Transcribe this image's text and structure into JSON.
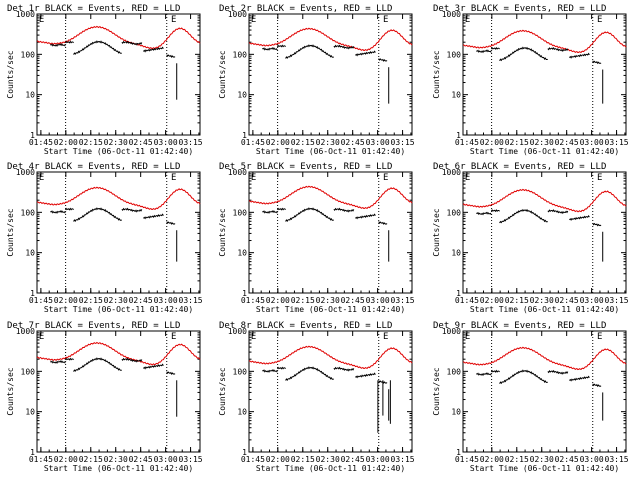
{
  "figure": {
    "layout": "3x3 grid",
    "legend_note": "BLACK = Events, RED = LLD",
    "start_time": "06-Oct-11 01:42:40"
  },
  "colors": {
    "events": "#000000",
    "lld": "#e00000",
    "axes": "#000000",
    "background": "#ffffff"
  },
  "chart_data": [
    {
      "type": "line",
      "title": "Det 1r BLACK = Events, RED = LLD",
      "xlabel": "Start Time (06-Oct-11 01:42:40)",
      "ylabel": "Counts/sec",
      "yscale": "log",
      "ylim": [
        1,
        1000
      ],
      "xlim_minutes": [
        0,
        98
      ],
      "x_tick_labels": [
        "01:45",
        "02:00",
        "02:15",
        "02:30",
        "02:45",
        "03:00",
        "03:15"
      ],
      "x_tick_minutes": [
        2.33,
        17.33,
        32.33,
        47.33,
        62.33,
        77.33,
        92.33
      ],
      "y_tick_labels": [
        "1",
        "10",
        "100",
        "1000"
      ],
      "y_ticks": [
        1,
        10,
        100,
        1000
      ],
      "event_markers": [
        "E",
        "E"
      ],
      "event_marker_minutes": [
        0.5,
        80
      ],
      "dotted_lines_minutes": [
        17.2,
        78
      ],
      "lld_level_scale": 1.0,
      "events_level_scale": 1.0,
      "events_drops": []
    },
    {
      "type": "line",
      "title": "Det 2r BLACK = Events, RED = LLD",
      "xlabel": "Start Time (06-Oct-11 01:42:40)",
      "ylabel": "Counts/sec",
      "yscale": "log",
      "ylim": [
        1,
        1000
      ],
      "xlim_minutes": [
        0,
        98
      ],
      "x_tick_labels": [
        "01:45",
        "02:00",
        "02:15",
        "02:30",
        "02:45",
        "03:00",
        "03:15"
      ],
      "x_tick_minutes": [
        2.33,
        17.33,
        32.33,
        47.33,
        62.33,
        77.33,
        92.33
      ],
      "y_tick_labels": [
        "1",
        "10",
        "100",
        "1000"
      ],
      "y_ticks": [
        1,
        10,
        100,
        1000
      ],
      "event_markers": [
        "E",
        "E"
      ],
      "event_marker_minutes": [
        0.5,
        80
      ],
      "dotted_lines_minutes": [
        17.2,
        78
      ],
      "lld_level_scale": 0.9,
      "events_level_scale": 0.8,
      "events_drops": []
    },
    {
      "type": "line",
      "title": "Det 3r BLACK = Events, RED = LLD",
      "xlabel": "Start Time (06-Oct-11 01:42:40)",
      "ylabel": "Counts/sec",
      "yscale": "log",
      "ylim": [
        1,
        1000
      ],
      "xlim_minutes": [
        0,
        98
      ],
      "x_tick_labels": [
        "01:45",
        "02:00",
        "02:15",
        "02:30",
        "02:45",
        "03:00",
        "03:15"
      ],
      "x_tick_minutes": [
        2.33,
        17.33,
        32.33,
        47.33,
        62.33,
        77.33,
        92.33
      ],
      "y_tick_labels": [
        "1",
        "10",
        "100",
        "1000"
      ],
      "y_ticks": [
        1,
        10,
        100,
        1000
      ],
      "event_markers": [
        "E",
        "E"
      ],
      "event_marker_minutes": [
        0.5,
        80
      ],
      "dotted_lines_minutes": [
        17.2,
        78
      ],
      "lld_level_scale": 0.8,
      "events_level_scale": 0.7,
      "events_drops": []
    },
    {
      "type": "line",
      "title": "Det 4r BLACK = Events, RED = LLD",
      "xlabel": "Start Time (06-Oct-11 01:42:40)",
      "ylabel": "Counts/sec",
      "yscale": "log",
      "ylim": [
        1,
        1000
      ],
      "xlim_minutes": [
        0,
        98
      ],
      "x_tick_labels": [
        "01:45",
        "02:00",
        "02:15",
        "02:30",
        "02:45",
        "03:00",
        "03:15"
      ],
      "x_tick_minutes": [
        2.33,
        17.33,
        32.33,
        47.33,
        62.33,
        77.33,
        92.33
      ],
      "y_tick_labels": [
        "1",
        "10",
        "100",
        "1000"
      ],
      "y_ticks": [
        1,
        10,
        100,
        1000
      ],
      "event_markers": [
        "E",
        "E"
      ],
      "event_marker_minutes": [
        0.5,
        80
      ],
      "dotted_lines_minutes": [
        17.2,
        78
      ],
      "lld_level_scale": 0.85,
      "events_level_scale": 0.6,
      "events_drops": []
    },
    {
      "type": "line",
      "title": "Det 5r BLACK = Events, RED = LLD",
      "xlabel": "Start Time (06-Oct-11 01:42:40)",
      "ylabel": "Counts/sec",
      "yscale": "log",
      "ylim": [
        1,
        1000
      ],
      "xlim_minutes": [
        0,
        98
      ],
      "x_tick_labels": [
        "01:45",
        "02:00",
        "02:15",
        "02:30",
        "02:45",
        "03:00",
        "03:15"
      ],
      "x_tick_minutes": [
        2.33,
        17.33,
        32.33,
        47.33,
        62.33,
        77.33,
        92.33
      ],
      "y_tick_labels": [
        "1",
        "10",
        "100",
        "1000"
      ],
      "y_ticks": [
        1,
        10,
        100,
        1000
      ],
      "event_markers": [
        "E",
        "E"
      ],
      "event_marker_minutes": [
        0.5,
        80
      ],
      "dotted_lines_minutes": [
        17.2,
        78
      ],
      "lld_level_scale": 0.9,
      "events_level_scale": 0.6,
      "events_drops": []
    },
    {
      "type": "line",
      "title": "Det 6r BLACK = Events, RED = LLD",
      "xlabel": "Start Time (06-Oct-11 01:42:40)",
      "ylabel": "Counts/sec",
      "yscale": "log",
      "ylim": [
        1,
        1000
      ],
      "xlim_minutes": [
        0,
        98
      ],
      "x_tick_labels": [
        "01:45",
        "02:00",
        "02:15",
        "02:30",
        "02:45",
        "03:00",
        "03:15"
      ],
      "x_tick_minutes": [
        2.33,
        17.33,
        32.33,
        47.33,
        62.33,
        77.33,
        92.33
      ],
      "y_tick_labels": [
        "1",
        "10",
        "100",
        "1000"
      ],
      "y_ticks": [
        1,
        10,
        100,
        1000
      ],
      "event_markers": [
        "E",
        "E"
      ],
      "event_marker_minutes": [
        0.5,
        80
      ],
      "dotted_lines_minutes": [
        17.2,
        78
      ],
      "lld_level_scale": 0.75,
      "events_level_scale": 0.55,
      "events_drops": []
    },
    {
      "type": "line",
      "title": "Det 7r BLACK = Events, RED = LLD",
      "xlabel": "Start Time (06-Oct-11 01:42:40)",
      "ylabel": "Counts/sec",
      "yscale": "log",
      "ylim": [
        1,
        1000
      ],
      "xlim_minutes": [
        0,
        98
      ],
      "x_tick_labels": [
        "01:45",
        "02:00",
        "02:15",
        "02:30",
        "02:45",
        "03:00",
        "03:15"
      ],
      "x_tick_minutes": [
        2.33,
        17.33,
        32.33,
        47.33,
        62.33,
        77.33,
        92.33
      ],
      "y_tick_labels": [
        "1",
        "10",
        "100",
        "1000"
      ],
      "y_ticks": [
        1,
        10,
        100,
        1000
      ],
      "event_markers": [
        "E",
        "E"
      ],
      "event_marker_minutes": [
        0.5,
        80
      ],
      "dotted_lines_minutes": [
        17.2,
        78
      ],
      "lld_level_scale": 1.05,
      "events_level_scale": 1.0,
      "events_drops": []
    },
    {
      "type": "line",
      "title": "Det 8r BLACK = Events, RED = LLD",
      "xlabel": "Start Time (06-Oct-11 01:42:40)",
      "ylabel": "Counts/sec",
      "yscale": "log",
      "ylim": [
        1,
        1000
      ],
      "xlim_minutes": [
        0,
        98
      ],
      "x_tick_labels": [
        "01:45",
        "02:00",
        "02:15",
        "02:30",
        "02:45",
        "03:00",
        "03:15"
      ],
      "x_tick_minutes": [
        2.33,
        17.33,
        32.33,
        47.33,
        62.33,
        77.33,
        92.33
      ],
      "y_tick_labels": [
        "1",
        "10",
        "100",
        "1000"
      ],
      "y_ticks": [
        1,
        10,
        100,
        1000
      ],
      "event_markers": [
        "E",
        "E"
      ],
      "event_marker_minutes": [
        0.5,
        80
      ],
      "dotted_lines_minutes": [
        17.2,
        78
      ],
      "lld_level_scale": 0.85,
      "events_level_scale": 0.6,
      "events_drops": [
        {
          "minute": 77.5,
          "value": 3
        },
        {
          "minute": 80.5,
          "value": 8
        },
        {
          "minute": 85,
          "value": 5
        }
      ]
    },
    {
      "type": "line",
      "title": "Det 9r BLACK = Events, RED = LLD",
      "xlabel": "Start Time (06-Oct-11 01:42:40)",
      "ylabel": "Counts/sec",
      "yscale": "log",
      "ylim": [
        1,
        1000
      ],
      "xlim_minutes": [
        0,
        98
      ],
      "x_tick_labels": [
        "01:45",
        "02:00",
        "02:15",
        "02:30",
        "02:45",
        "03:00",
        "03:15"
      ],
      "x_tick_minutes": [
        2.33,
        17.33,
        32.33,
        47.33,
        62.33,
        77.33,
        92.33
      ],
      "y_tick_labels": [
        "1",
        "10",
        "100",
        "1000"
      ],
      "y_ticks": [
        1,
        10,
        100,
        1000
      ],
      "event_markers": [
        "E",
        "E"
      ],
      "event_marker_minutes": [
        0.5,
        80
      ],
      "dotted_lines_minutes": [
        17.2,
        78
      ],
      "lld_level_scale": 0.8,
      "events_level_scale": 0.5,
      "events_drops": []
    }
  ]
}
